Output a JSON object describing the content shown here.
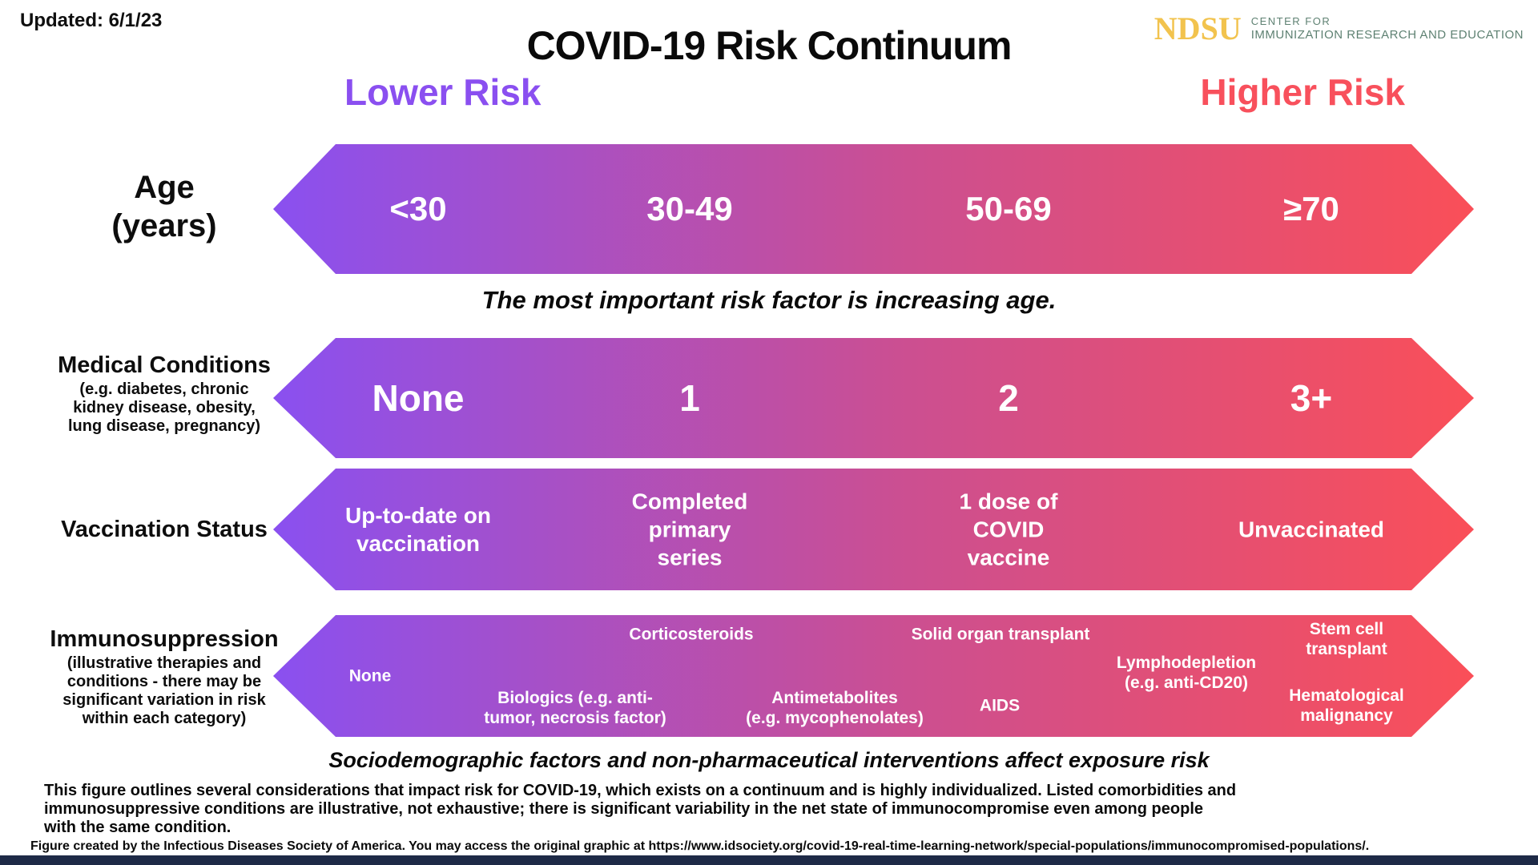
{
  "updated": "Updated: 6/1/23",
  "title": "COVID-19 Risk Continuum",
  "logo": {
    "ndsu": "NDSU",
    "center_line1": "CENTER FOR",
    "center_line2": "IMMUNIZATION RESEARCH AND EDUCATION"
  },
  "axis": {
    "lower": "Lower Risk",
    "higher": "Higher Risk"
  },
  "rows": [
    {
      "label": "Age\n(years)",
      "values": [
        "<30",
        "30-49",
        "50-69",
        "≥70"
      ]
    },
    {
      "label": "Medical Conditions",
      "sublabel": "(e.g. diabetes, chronic\nkidney disease, obesity,\nlung disease, pregnancy)",
      "values": [
        "None",
        "1",
        "2",
        "3+"
      ]
    },
    {
      "label": "Vaccination Status",
      "values": [
        "Up-to-date on\nvaccination",
        "Completed\nprimary\nseries",
        "1 dose of\nCOVID\nvaccine",
        "Unvaccinated"
      ]
    },
    {
      "label": "Immunosuppression",
      "sublabel": "(illustrative therapies and\nconditions - there may be\nsignificant variation in risk\nwithin each category)",
      "items": {
        "none": "None",
        "corticosteroids": "Corticosteroids",
        "biologics": "Biologics (e.g. anti-\ntumor, necrosis factor)",
        "antimetabolites": "Antimetabolites\n(e.g. mycophenolates)",
        "solid_organ": "Solid organ transplant",
        "aids": "AIDS",
        "lymphodepletion": "Lymphodepletion\n(e.g. anti-CD20)",
        "stem_cell": "Stem cell\ntransplant",
        "hematological": "Hematological\nmalignancy"
      }
    }
  ],
  "notes": {
    "age_note": "The most important risk factor is increasing age.",
    "exposure_note": "Sociodemographic factors and non-pharmaceutical interventions affect exposure risk"
  },
  "footer": {
    "description": "This figure outlines several considerations that impact risk for COVID-19, which exists on a continuum and is highly individualized. Listed comorbidities and\nimmunosuppressive conditions are illustrative, not exhaustive; there is significant variability in the net state of immunocompromise even among people\nwith the same condition.",
    "attribution": "Figure created by the Infectious Diseases Society of America. You may access the original graphic at https://www.idsociety.org/covid-19-real-time-learning-network/special-populations/immunocompromised-populations/."
  },
  "colors": {
    "gradient_start": "#8a50f0",
    "gradient_mid": "#cb4f92",
    "gradient_end": "#fa4f58",
    "lower_risk_text": "#8a4ff0",
    "higher_risk_text": "#f8505c",
    "ndsu_gold": "#f2c34e",
    "center_green": "#5e8172",
    "bottom_bar": "#1e2a47"
  }
}
